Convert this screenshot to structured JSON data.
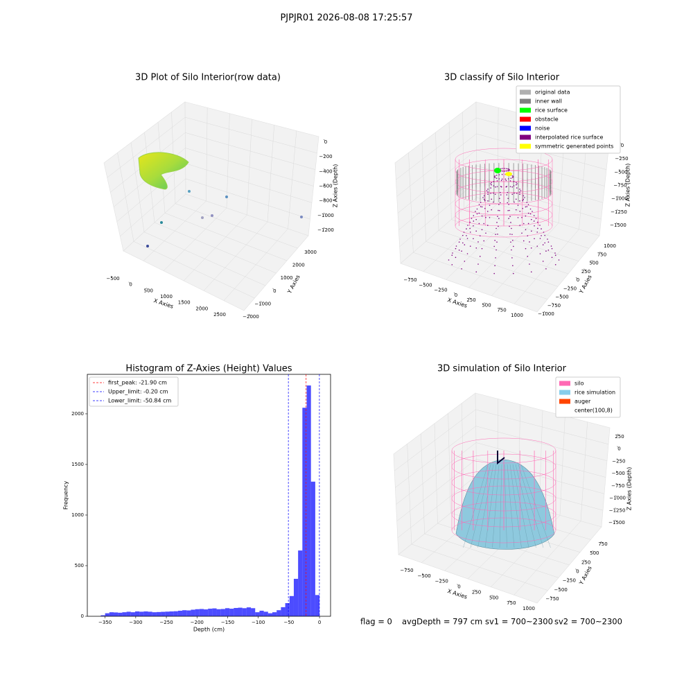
{
  "title": "PJPJR01 2026-08-08 17:25:57",
  "chart_data": [
    {
      "type": "scatter3d",
      "title": "3D Plot of Silo Interior(row data)",
      "xlabel": "X Axies",
      "ylabel": "Y Axies",
      "zlabel": "Z Axies (Depth)",
      "xlim": [
        -500,
        2500
      ],
      "ylim": [
        -2000,
        3000
      ],
      "zlim": [
        -1200,
        0
      ],
      "xticks": [
        {
          "value": -500,
          "label": "−500"
        },
        0,
        500,
        1000,
        1500,
        2000,
        2500
      ],
      "yticks": [
        {
          "value": -2000,
          "label": "−2000"
        },
        {
          "value": -1000,
          "label": "−1000"
        },
        0,
        1000,
        2000,
        3000
      ],
      "zticks": [
        {
          "value": -1200,
          "label": "−1200"
        },
        {
          "value": -1000,
          "label": "−1000"
        },
        {
          "value": -800,
          "label": "−800"
        },
        {
          "value": -600,
          "label": "−600"
        },
        {
          "value": -400,
          "label": "−400"
        },
        {
          "value": -200,
          "label": "−200"
        },
        0
      ]
    },
    {
      "type": "scatter3d",
      "title": "3D classify of Silo Interior",
      "xlabel": "X Axies",
      "ylabel": "Y Axies",
      "zlabel": "Z Axies (Depth)",
      "xlim": [
        -750,
        1000
      ],
      "ylim": [
        -1000,
        1000
      ],
      "zlim": [
        -1500,
        0
      ],
      "xticks": [
        {
          "value": -750,
          "label": "−750"
        },
        {
          "value": -500,
          "label": "−500"
        },
        {
          "value": -250,
          "label": "−250"
        },
        0,
        250,
        500,
        750,
        1000
      ],
      "yticks": [
        {
          "value": -1000,
          "label": "−1000"
        },
        {
          "value": -750,
          "label": "−750"
        },
        {
          "value": -500,
          "label": "−500"
        },
        {
          "value": -250,
          "label": "−250"
        },
        0,
        250,
        500,
        750,
        1000
      ],
      "zticks": [
        {
          "value": -1500,
          "label": "−1500"
        },
        {
          "value": -1250,
          "label": "−1250"
        },
        {
          "value": -1000,
          "label": "−1000"
        },
        {
          "value": -750,
          "label": "−750"
        },
        {
          "value": -500,
          "label": "−500"
        },
        {
          "value": -250,
          "label": "−250"
        },
        0
      ],
      "series": [
        {
          "name": "original data",
          "color": "#b0b0b0"
        },
        {
          "name": "inner wall",
          "color": "#808080"
        },
        {
          "name": "rice surface",
          "color": "#00ff00"
        },
        {
          "name": "obstacle",
          "color": "#ff0000"
        },
        {
          "name": "noise",
          "color": "#0000ff"
        },
        {
          "name": "interpolated rice surface",
          "color": "#800080"
        },
        {
          "name": "symmetric generated points",
          "color": "#ffff00"
        }
      ]
    },
    {
      "type": "histogram",
      "title": "Histogram of Z-Axies (Height) Values",
      "xlabel": "Depth (cm)",
      "ylabel": "Frequency",
      "color": "#0000ff",
      "bins": [
        -357,
        -350,
        -343,
        -336,
        -329,
        -322,
        -315,
        -308,
        -301,
        -294,
        -287,
        -280,
        -273,
        -266,
        -259,
        -252,
        -245,
        -238,
        -231,
        -224,
        -217,
        -210,
        -203,
        -196,
        -189,
        -182,
        -175,
        -168,
        -161,
        -154,
        -147,
        -140,
        -133,
        -126,
        -119,
        -112,
        -105,
        -98,
        -91,
        -84,
        -77,
        -70,
        -63,
        -56,
        -49,
        -42,
        -35,
        -28,
        -21,
        -14,
        -7,
        0
      ],
      "values": [
        10,
        30,
        40,
        38,
        35,
        40,
        45,
        40,
        48,
        45,
        48,
        45,
        40,
        42,
        44,
        46,
        48,
        50,
        55,
        60,
        58,
        65,
        70,
        72,
        68,
        75,
        78,
        70,
        72,
        80,
        75,
        82,
        85,
        80,
        88,
        80,
        40,
        55,
        45,
        30,
        40,
        60,
        90,
        130,
        200,
        370,
        650,
        2060,
        2280,
        1330,
        210
      ],
      "xlim": [
        -379,
        18
      ],
      "ylim": [
        0,
        2390
      ],
      "xticks": [
        {
          "value": -350,
          "label": "−350"
        },
        {
          "value": -300,
          "label": "−300"
        },
        {
          "value": -250,
          "label": "−250"
        },
        {
          "value": -200,
          "label": "−200"
        },
        {
          "value": -150,
          "label": "−150"
        },
        {
          "value": -100,
          "label": "−100"
        },
        {
          "value": -50,
          "label": "−50"
        },
        0
      ],
      "yticks": [
        0,
        500,
        1000,
        1500,
        2000
      ],
      "vlines": [
        {
          "name": "first_peak: -21.90 cm",
          "value": -21.9,
          "color": "#ff0000"
        },
        {
          "name": "Upper_limit: -0.20 cm",
          "value": -0.2,
          "color": "#0000ff"
        },
        {
          "name": "Lower_limit: -50.84 cm",
          "value": -50.84,
          "color": "#0000ff"
        }
      ]
    },
    {
      "type": "surface3d",
      "title": "3D simulation of Silo Interior",
      "xlabel": "X Axies",
      "ylabel": "Y Axies",
      "zlabel": "Z Axies (Depth)",
      "xlim": [
        -750,
        1000
      ],
      "ylim": [
        -750,
        750
      ],
      "zlim": [
        -1500,
        250
      ],
      "xticks": [
        {
          "value": -750,
          "label": "−750"
        },
        {
          "value": -500,
          "label": "−500"
        },
        {
          "value": -250,
          "label": "−250"
        },
        0,
        250,
        500,
        750,
        1000
      ],
      "yticks": [
        {
          "value": -750,
          "label": "−750"
        },
        {
          "value": -500,
          "label": "−500"
        },
        {
          "value": -250,
          "label": "−250"
        },
        0,
        250,
        500,
        750
      ],
      "zticks": [
        {
          "value": -1500,
          "label": "−1500"
        },
        {
          "value": -1250,
          "label": "−1250"
        },
        {
          "value": -1000,
          "label": "−1000"
        },
        {
          "value": -750,
          "label": "−750"
        },
        {
          "value": -500,
          "label": "−500"
        },
        {
          "value": -250,
          "label": "−250"
        },
        0,
        250
      ],
      "series": [
        {
          "name": "silo",
          "color": "#ff69b4"
        },
        {
          "name": "rice simulation",
          "color": "#87ceeb"
        },
        {
          "name": "auger",
          "color": "#ff4500"
        },
        {
          "name": "center(100,8)",
          "color": "#ffffff"
        }
      ]
    }
  ],
  "status": [
    "flag = 0",
    "avgDepth = 797 cm",
    "sv1 = 700~2300",
    "sv2 = 700~2300"
  ]
}
